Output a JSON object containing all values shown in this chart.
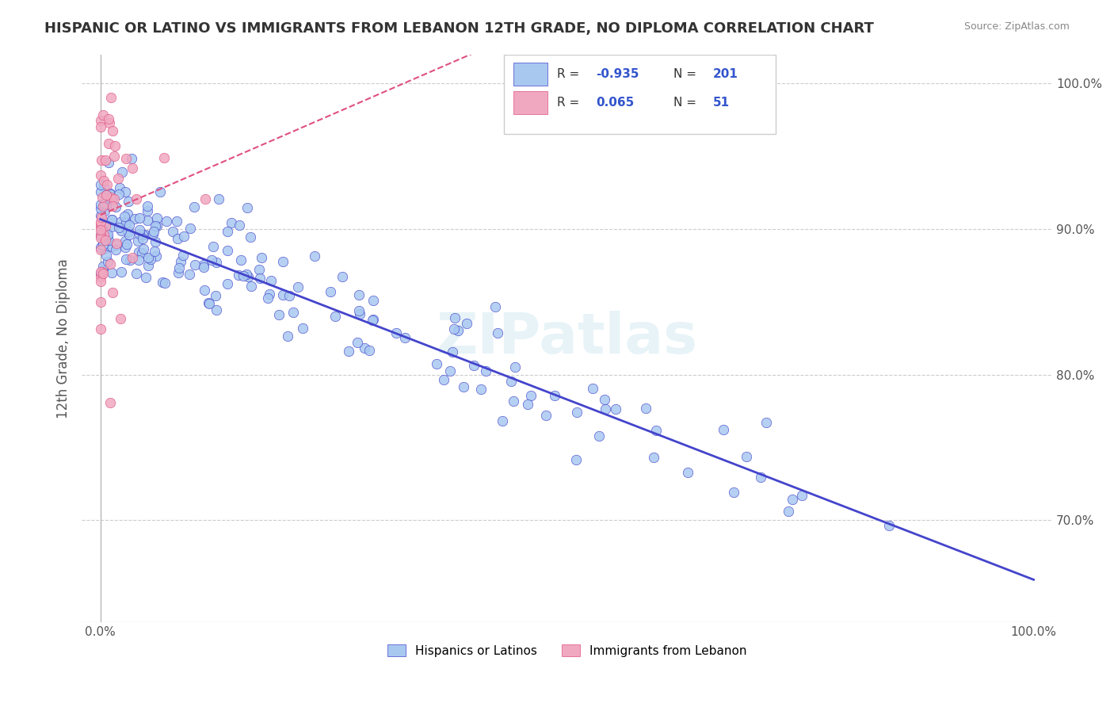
{
  "title": "HISPANIC OR LATINO VS IMMIGRANTS FROM LEBANON 12TH GRADE, NO DIPLOMA CORRELATION CHART",
  "source": "Source: ZipAtlas.com",
  "xlabel": "",
  "ylabel": "12th Grade, No Diploma",
  "xticklabels": [
    "0.0%",
    "100.0%"
  ],
  "yticklabels": [
    "70.0%",
    "80.0%",
    "90.0%",
    "100.0%"
  ],
  "legend_labels": [
    "Hispanics or Latinos",
    "Immigrants from Lebanon"
  ],
  "legend_r_values": [
    "-0.935",
    "0.065"
  ],
  "legend_n_values": [
    "201",
    "51"
  ],
  "blue_color": "#a8c8f0",
  "pink_color": "#f0a8c0",
  "blue_line_color": "#4444cc",
  "pink_line_color": "#e05080",
  "title_color": "#333333",
  "r_value_color": "#3355cc",
  "watermark": "ZIPatlas",
  "xlim": [
    0.0,
    1.0
  ],
  "ylim": [
    0.63,
    1.02
  ],
  "blue_r": -0.935,
  "pink_r": 0.065,
  "blue_n": 201,
  "pink_n": 51,
  "seed_blue": 42,
  "seed_pink": 99
}
